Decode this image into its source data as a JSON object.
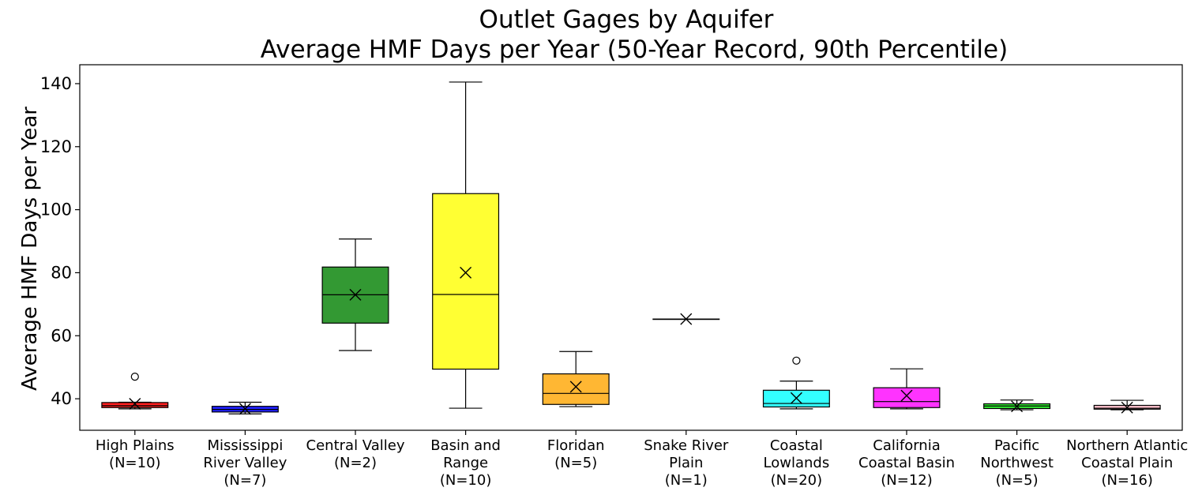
{
  "chart_data": {
    "type": "box",
    "title_lines": [
      "Outlet Gages by Aquifer",
      "Average HMF Days per Year (50-Year Record, 90th Percentile)"
    ],
    "xlabel": "",
    "ylabel": "Average HMF Days per Year",
    "ylim": [
      30,
      146
    ],
    "yticks": [
      40,
      60,
      80,
      100,
      120,
      140
    ],
    "grid": false,
    "legend": "none",
    "mean_marker": "x",
    "categories": [
      {
        "label_lines": [
          "High Plains",
          "(N=10)"
        ],
        "color": "#ff2020",
        "whislo": 36.8,
        "q1": 37.2,
        "med": 37.8,
        "q3": 38.8,
        "whishi": 38.9,
        "mean": 38.4,
        "outliers": [
          47.0
        ]
      },
      {
        "label_lines": [
          "Mississippi",
          "River Valley",
          "(N=7)"
        ],
        "color": "#2020ff",
        "whislo": 35.2,
        "q1": 35.8,
        "med": 36.6,
        "q3": 37.6,
        "whishi": 38.9,
        "mean": 36.8,
        "outliers": []
      },
      {
        "label_lines": [
          "Central Valley",
          "(N=2)"
        ],
        "color": "#339933",
        "whislo": 55.3,
        "q1": 64.0,
        "med": 73.0,
        "q3": 81.8,
        "whishi": 90.7,
        "mean": 73.0,
        "outliers": []
      },
      {
        "label_lines": [
          "Basin and",
          "Range",
          "(N=10)"
        ],
        "color": "#ffff33",
        "whislo": 37.0,
        "q1": 49.4,
        "med": 73.1,
        "q3": 105.1,
        "whishi": 140.5,
        "mean": 80.0,
        "outliers": []
      },
      {
        "label_lines": [
          "Floridan",
          "(N=5)"
        ],
        "color": "#ffb733",
        "whislo": 37.5,
        "q1": 38.2,
        "med": 41.7,
        "q3": 47.9,
        "whishi": 55.0,
        "mean": 43.8,
        "outliers": []
      },
      {
        "label_lines": [
          "Snake River",
          "Plain",
          "(N=1)"
        ],
        "color": "#d0d0d0",
        "whislo": 65.3,
        "q1": 65.3,
        "med": 65.3,
        "q3": 65.3,
        "whishi": 65.3,
        "mean": 65.3,
        "outliers": []
      },
      {
        "label_lines": [
          "Coastal",
          "Lowlands",
          "(N=20)"
        ],
        "color": "#33ffff",
        "whislo": 36.8,
        "q1": 37.4,
        "med": 38.5,
        "q3": 42.7,
        "whishi": 45.6,
        "mean": 40.2,
        "outliers": [
          52.1
        ]
      },
      {
        "label_lines": [
          "California",
          "Coastal Basin",
          "(N=12)"
        ],
        "color": "#ff33ff",
        "whislo": 36.8,
        "q1": 37.2,
        "med": 39.1,
        "q3": 43.5,
        "whishi": 49.5,
        "mean": 41.0,
        "outliers": []
      },
      {
        "label_lines": [
          "Pacific",
          "Northwest",
          "(N=5)"
        ],
        "color": "#33ee33",
        "whislo": 36.5,
        "q1": 36.9,
        "med": 37.7,
        "q3": 38.4,
        "whishi": 39.6,
        "mean": 37.6,
        "outliers": []
      },
      {
        "label_lines": [
          "Northern Atlantic",
          "Coastal Plain",
          "(N=16)"
        ],
        "color": "#ffc0cb",
        "whislo": 36.5,
        "q1": 36.7,
        "med": 37.0,
        "q3": 37.9,
        "whishi": 39.5,
        "mean": 37.2,
        "outliers": []
      }
    ]
  }
}
